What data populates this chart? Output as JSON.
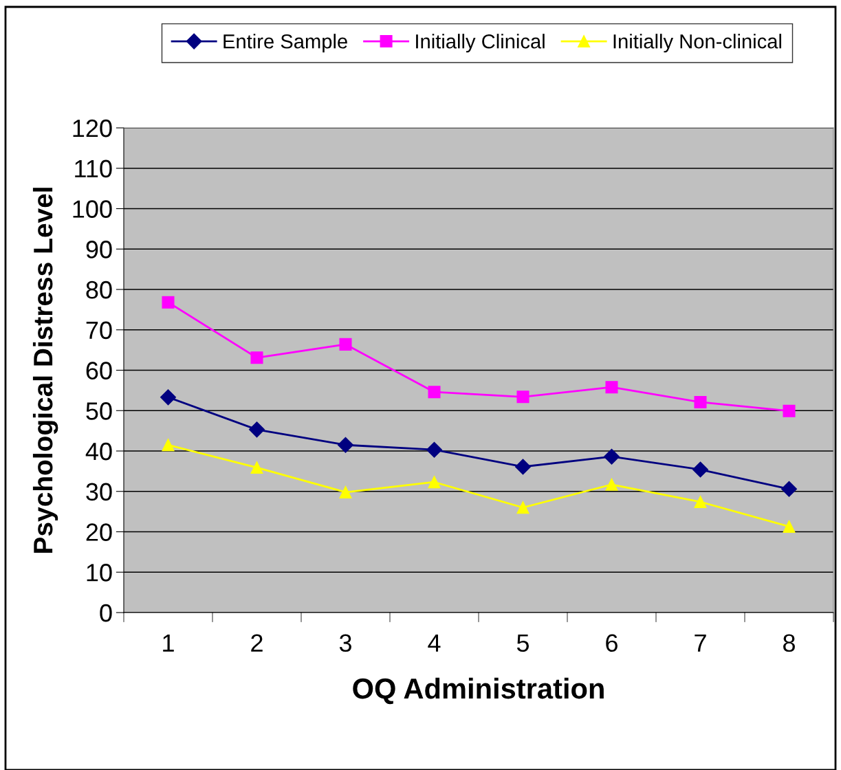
{
  "chart_data": {
    "type": "line",
    "xlabel": "OQ Administration",
    "ylabel": "Psychological Distress Level",
    "categories": [
      "1",
      "2",
      "3",
      "4",
      "5",
      "6",
      "7",
      "8"
    ],
    "series": [
      {
        "name": "Entire Sample",
        "color": "#000080",
        "marker": "diamond",
        "values": [
          53.3,
          45.3,
          41.5,
          40.3,
          36.1,
          38.6,
          35.4,
          30.6
        ]
      },
      {
        "name": "Initially Clinical",
        "color": "#ff00ff",
        "marker": "square",
        "values": [
          76.8,
          63.1,
          66.4,
          54.6,
          53.4,
          55.8,
          52.1,
          49.9
        ]
      },
      {
        "name": "Initially Non-clinical",
        "color": "#ffff00",
        "marker": "triangle",
        "values": [
          41.5,
          35.9,
          29.8,
          32.3,
          26.0,
          31.7,
          27.4,
          21.3
        ]
      }
    ],
    "ylim": [
      0,
      120
    ],
    "yticks": [
      0,
      10,
      20,
      30,
      40,
      50,
      60,
      70,
      80,
      90,
      100,
      110,
      120
    ],
    "grid": "y",
    "legend": "top",
    "line_style": "solid"
  }
}
